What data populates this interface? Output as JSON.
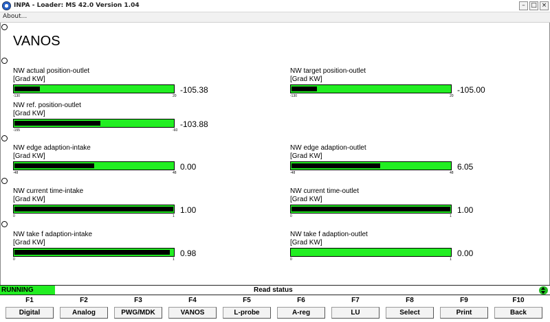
{
  "window": {
    "title": "INPA - Loader:  MS 42.0 Version 1.04",
    "menu": [
      "About..."
    ]
  },
  "page": {
    "title": "VANOS"
  },
  "gauges": [
    {
      "label": "NW actual position-outlet",
      "unit": "[Grad KW]",
      "min": "-130",
      "max": "20",
      "value": "-105.38",
      "level": 0.16
    },
    {
      "label": "NW target position-outlet",
      "unit": "[Grad KW]",
      "min": "-130",
      "max": "20",
      "value": "-105.00",
      "level": 0.16
    },
    {
      "label": "NW ref. position-outlet",
      "unit": "[Grad KW]",
      "min": "-155",
      "max": "-60",
      "value": "-103.88",
      "level": 0.54
    },
    {
      "label": "NW edge adaption-intake",
      "unit": "[Grad KW]",
      "min": "-48",
      "max": "48",
      "value": "0.00",
      "level": 0.5
    },
    {
      "label": "NW edge adaption-outlet",
      "unit": "[Grad KW]",
      "min": "-48",
      "max": "48",
      "value": "6.05",
      "level": 0.56
    },
    {
      "label": "NW current time-intake",
      "unit": "[Grad KW]",
      "min": "0",
      "max": "1",
      "value": "1.00",
      "level": 1.0
    },
    {
      "label": "NW current time-outlet",
      "unit": "[Grad KW]",
      "min": "0",
      "max": "1",
      "value": "1.00",
      "level": 1.0
    },
    {
      "label": "NW take f adaption-intake",
      "unit": "[Grad KW]",
      "min": "0",
      "max": "1",
      "value": "0.98",
      "level": 0.98
    },
    {
      "label": "NW take f adaption-outlet",
      "unit": "[Grad KW]",
      "min": "0",
      "max": "1",
      "value": "0.00",
      "level": 0.0
    }
  ],
  "status": {
    "state": "RUNNING",
    "message": "Read status",
    "state_color": "#22ee22"
  },
  "fkeys": [
    {
      "key": "F1",
      "label": "Digital"
    },
    {
      "key": "F2",
      "label": "Analog"
    },
    {
      "key": "F3",
      "label": "PWG/MDK"
    },
    {
      "key": "F4",
      "label": "VANOS"
    },
    {
      "key": "F5",
      "label": "L-probe"
    },
    {
      "key": "F6",
      "label": "A-reg"
    },
    {
      "key": "F7",
      "label": "LU"
    },
    {
      "key": "F8",
      "label": "Select"
    },
    {
      "key": "F9",
      "label": "Print"
    },
    {
      "key": "F10",
      "label": "Back"
    }
  ],
  "colors": {
    "bar_green": "#22ee22",
    "bar_fill": "#000000"
  },
  "icons": {
    "app": "bmw-logo-icon",
    "toggle": "up-down-arrows-icon"
  }
}
